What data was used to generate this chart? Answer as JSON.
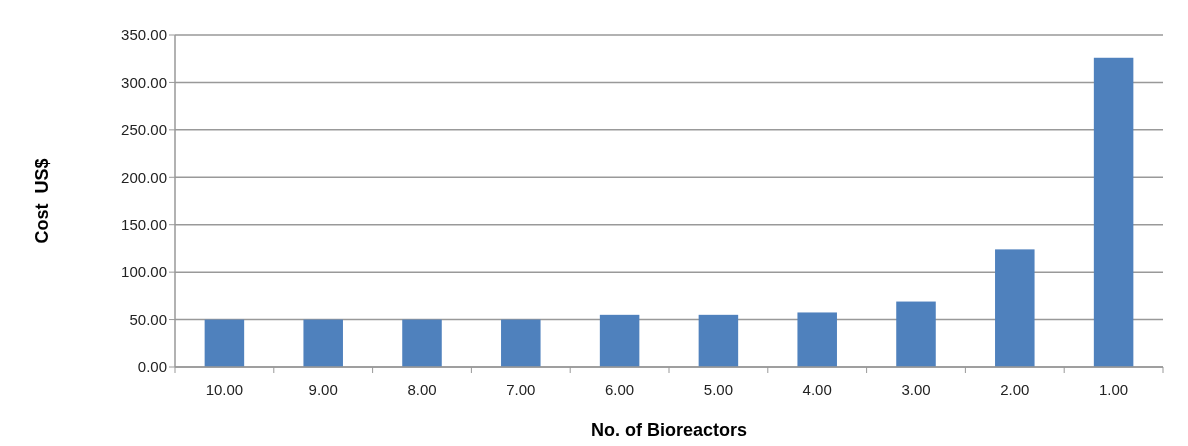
{
  "chart_data": {
    "type": "bar",
    "xlabel": "No. of Bioreactors",
    "ylabel": "Cost  US$",
    "categories": [
      "10.00",
      "9.00",
      "8.00",
      "7.00",
      "6.00",
      "5.00",
      "4.00",
      "3.00",
      "2.00",
      "1.00"
    ],
    "values": [
      50,
      50,
      50,
      50,
      55,
      55,
      57.5,
      69,
      124,
      326
    ],
    "color": "#4f81bd",
    "ylim": [
      0,
      350
    ],
    "yticks": [
      {
        "value": 0,
        "label": "0.00"
      },
      {
        "value": 50,
        "label": "50.00"
      },
      {
        "value": 100,
        "label": "100.00"
      },
      {
        "value": 150,
        "label": "150.00"
      },
      {
        "value": 200,
        "label": "200.00"
      },
      {
        "value": 250,
        "label": "250.00"
      },
      {
        "value": 300,
        "label": "300.00"
      },
      {
        "value": 350,
        "label": "350.00"
      }
    ],
    "grid": "y"
  }
}
